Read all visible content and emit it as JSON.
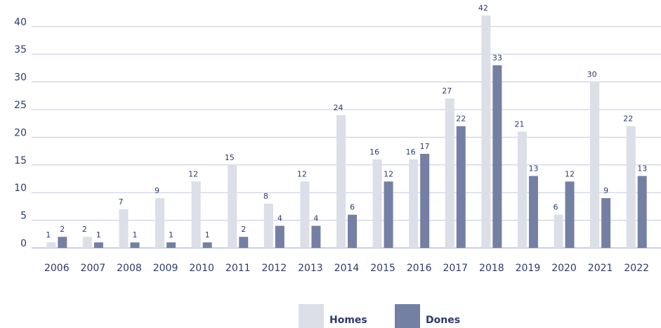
{
  "chart_data": {
    "type": "bar",
    "categories": [
      "2006",
      "2007",
      "2008",
      "2009",
      "2010",
      "2011",
      "2012",
      "2013",
      "2014",
      "2015",
      "2016",
      "2017",
      "2018",
      "2019",
      "2020",
      "2021",
      "2022"
    ],
    "series": [
      {
        "name": "Homes",
        "color": "#dcdee8",
        "values": [
          1,
          2,
          7,
          9,
          12,
          15,
          8,
          12,
          24,
          16,
          16,
          27,
          42,
          21,
          6,
          30,
          22
        ]
      },
      {
        "name": "Dones",
        "color": "#7480a3",
        "values": [
          2,
          1,
          1,
          1,
          1,
          2,
          4,
          4,
          6,
          12,
          17,
          22,
          33,
          13,
          12,
          9,
          13
        ]
      }
    ],
    "ylim": [
      0,
      42
    ],
    "yticks": [
      0,
      5,
      10,
      15,
      20,
      25,
      30,
      35,
      40
    ],
    "grid": true,
    "legend": "bottom"
  }
}
